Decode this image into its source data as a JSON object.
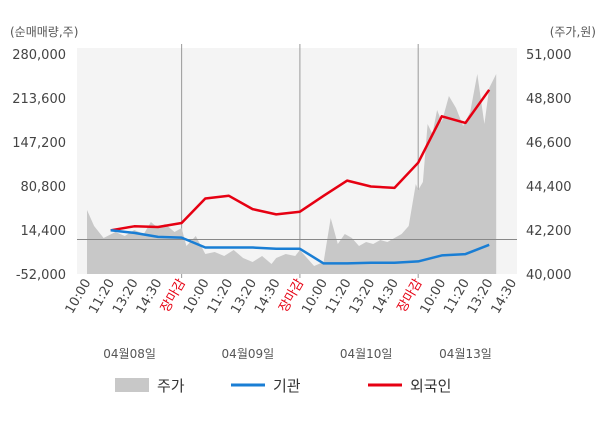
{
  "chart_data": {
    "type": "line",
    "left_unit_label": "(순매매량,주)",
    "right_unit_label": "(주가,원)",
    "left_axis": {
      "min": -52000,
      "max": 280000,
      "ticks": [
        "280,000",
        "213,600",
        "147,200",
        "80,800",
        "14,400",
        "-52,000"
      ]
    },
    "right_axis": {
      "min": 40000,
      "max": 51000,
      "ticks": [
        "51,000",
        "48,800",
        "46,600",
        "44,400",
        "42,200",
        "40,000"
      ]
    },
    "x_ticks": [
      {
        "label": "10:00",
        "color": "#444444"
      },
      {
        "label": "11:20",
        "color": "#444444"
      },
      {
        "label": "13:20",
        "color": "#444444"
      },
      {
        "label": "14:30",
        "color": "#444444"
      },
      {
        "label": "장마감",
        "color": "#e60012"
      },
      {
        "label": "10:00",
        "color": "#444444"
      },
      {
        "label": "11:20",
        "color": "#444444"
      },
      {
        "label": "13:20",
        "color": "#444444"
      },
      {
        "label": "14:30",
        "color": "#444444"
      },
      {
        "label": "장마감",
        "color": "#e60012"
      },
      {
        "label": "10:00",
        "color": "#444444"
      },
      {
        "label": "11:20",
        "color": "#444444"
      },
      {
        "label": "13:20",
        "color": "#444444"
      },
      {
        "label": "14:30",
        "color": "#444444"
      },
      {
        "label": "장마감",
        "color": "#e60012"
      },
      {
        "label": "10:00",
        "color": "#444444"
      },
      {
        "label": "11:20",
        "color": "#444444"
      },
      {
        "label": "13:20",
        "color": "#444444"
      },
      {
        "label": "14:30",
        "color": "#444444"
      }
    ],
    "dates": [
      "04월08일",
      "04월09일",
      "04월10일",
      "04월13일"
    ],
    "day_separators": [
      4.0,
      9.0,
      14.0
    ],
    "series": [
      {
        "name": "외국인",
        "color": "#e60012",
        "x": [
          1.0,
          2.0,
          3.0,
          4.0,
          5.0,
          6.0,
          7.0,
          8.0,
          9.0,
          10.0,
          11.0,
          12.0,
          13.0,
          14.0,
          15.0,
          16.0,
          17.0
        ],
        "values": [
          14000,
          20000,
          19000,
          25000,
          62000,
          66000,
          46000,
          38000,
          42000,
          66000,
          89000,
          80000,
          78000,
          116000,
          186000,
          176000,
          226000
        ]
      },
      {
        "name": "기관",
        "color": "#1a7ed4",
        "x": [
          1.0,
          2.0,
          3.0,
          4.0,
          5.0,
          6.0,
          7.0,
          8.0,
          9.0,
          10.0,
          11.0,
          12.0,
          13.0,
          14.0,
          15.0,
          16.0,
          17.0
        ],
        "values": [
          14000,
          10000,
          4000,
          3000,
          -12000,
          -12000,
          -12000,
          -14000,
          -14000,
          -36000,
          -36000,
          -35000,
          -35000,
          -33000,
          -24000,
          -22000,
          -8000
        ]
      },
      {
        "name": "주가",
        "color": "#c8c8c8",
        "x": [
          0.0,
          0.3,
          0.7,
          1.2,
          1.6,
          2.0,
          2.4,
          2.7,
          3.0,
          3.3,
          3.7,
          4.0,
          4.2,
          4.6,
          5.0,
          5.4,
          5.8,
          6.2,
          6.6,
          7.0,
          7.4,
          7.8,
          8.0,
          8.4,
          8.8,
          9.0,
          9.3,
          9.6,
          10.0,
          10.3,
          10.6,
          10.9,
          11.2,
          11.5,
          11.8,
          12.1,
          12.4,
          12.7,
          13.0,
          13.3,
          13.6,
          13.9,
          14.0,
          14.2,
          14.4,
          14.6,
          14.8,
          15.0,
          15.3,
          15.6,
          15.9,
          16.2,
          16.5,
          16.8,
          17.0,
          17.3
        ],
        "values": [
          43200,
          42400,
          41800,
          42100,
          41900,
          42200,
          42000,
          42600,
          42300,
          42500,
          42100,
          42300,
          41400,
          41900,
          41000,
          41100,
          40900,
          41200,
          40800,
          40600,
          40900,
          40500,
          40800,
          41000,
          40900,
          41200,
          40800,
          40400,
          40600,
          42800,
          41500,
          42000,
          41800,
          41400,
          41600,
          41500,
          41700,
          41600,
          41800,
          42000,
          42400,
          44500,
          44200,
          44600,
          47500,
          47000,
          48200,
          47600,
          48900,
          48300,
          47400,
          48100,
          50000,
          47500,
          49300,
          50000
        ]
      }
    ],
    "legend": [
      "주가",
      "기관",
      "외국인"
    ],
    "legend_position": "bottom"
  }
}
